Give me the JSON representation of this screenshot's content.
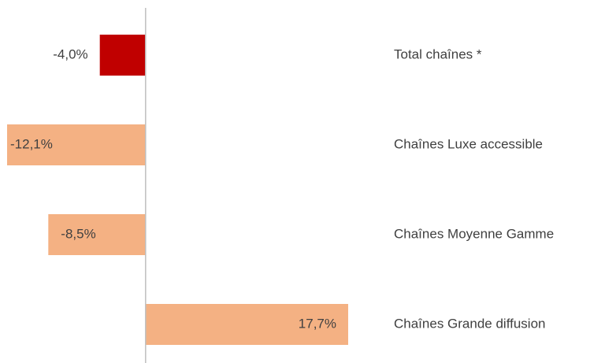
{
  "chart_data": {
    "type": "hbar",
    "categories": [
      "Total chaînes *",
      "Chaînes Luxe accessible",
      "Chaînes Moyenne Gamme",
      "Chaînes Grande diffusion"
    ],
    "values": [
      -4.0,
      -12.1,
      -8.5,
      17.7
    ],
    "value_labels": [
      "-4,0%",
      "-12,1%",
      "-8,5%",
      "17,7%"
    ],
    "colors": [
      "#c00000",
      "#f4b183",
      "#f4b183",
      "#f4b183"
    ]
  }
}
